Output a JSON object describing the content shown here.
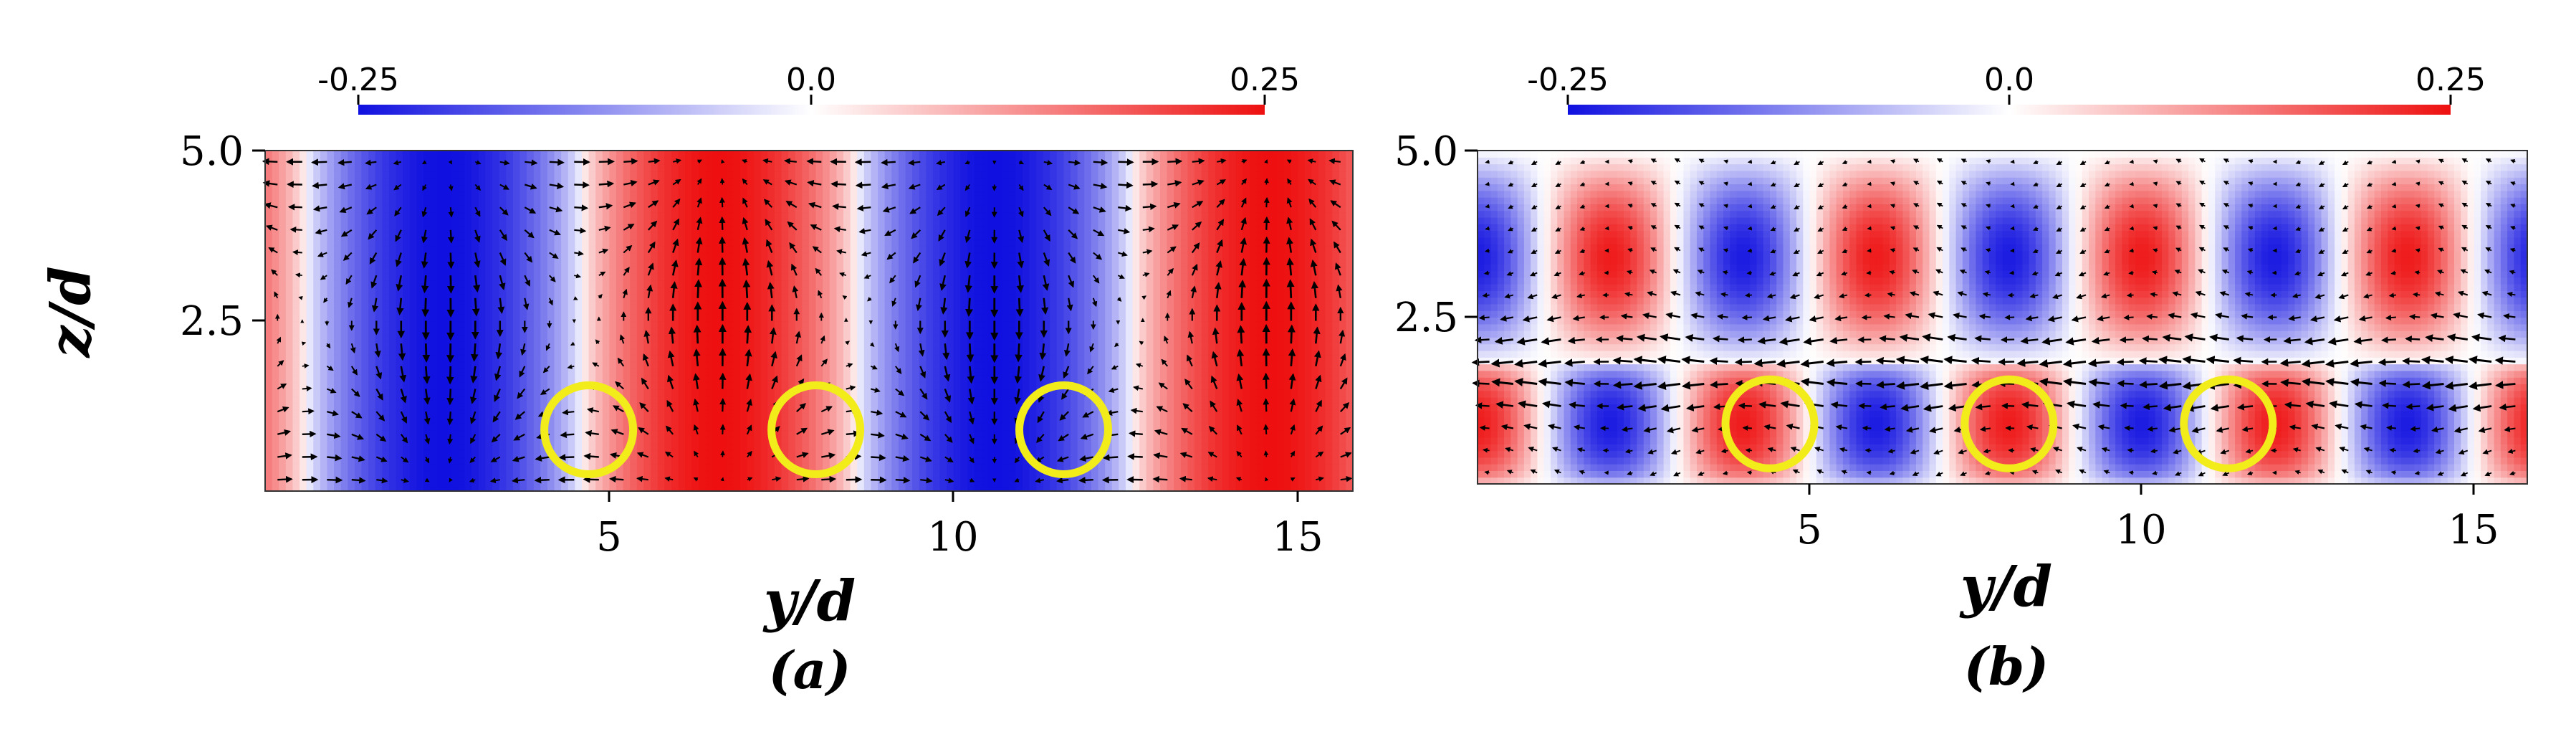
{
  "chart_data": [
    {
      "type": "heatmap",
      "panel_label": "(a)",
      "xlabel": "y/d",
      "ylabel": "z/d",
      "xlim": [
        0,
        15.8
      ],
      "ylim": [
        0,
        5.0
      ],
      "xticks": [
        5,
        10,
        15
      ],
      "xtick_labels": [
        "5",
        "10",
        "15"
      ],
      "yticks": [
        2.5,
        5.0
      ],
      "ytick_labels": [
        "2.5",
        "5.0"
      ],
      "colorbar": {
        "min": -0.25,
        "max": 0.25,
        "labels": [
          "-0.25",
          "0.0",
          "0.25"
        ],
        "colors": [
          "#1010e0",
          "#ffffff",
          "#ee1010"
        ],
        "placement": "top"
      },
      "field": {
        "pattern": "columns",
        "wavelength": 8.0,
        "phase": 0.6,
        "amplitude": 0.25
      },
      "vectors": "vortex-cells",
      "circles": [
        {
          "y": 4.7,
          "z": 0.9
        },
        {
          "y": 8.0,
          "z": 0.9
        },
        {
          "y": 11.6,
          "z": 0.9
        }
      ],
      "circle_color": "#f2ec1a"
    },
    {
      "type": "heatmap",
      "panel_label": "(b)",
      "xlabel": "y/d",
      "ylabel": "",
      "xlim": [
        0,
        15.8
      ],
      "ylim": [
        0,
        5.0
      ],
      "xticks": [
        5,
        10,
        15
      ],
      "xtick_labels": [
        "5",
        "10",
        "15"
      ],
      "yticks": [
        2.5,
        5.0
      ],
      "ytick_labels": [
        "2.5",
        "5.0"
      ],
      "colorbar": {
        "min": -0.25,
        "max": 0.25,
        "labels": [
          "-0.25",
          "0.0",
          "0.25"
        ],
        "colors": [
          "#1010e0",
          "#ffffff",
          "#ee1010"
        ],
        "placement": "top"
      },
      "field": {
        "pattern": "layered-cells",
        "wavelength": 4.0,
        "phase": 0.0,
        "interface_z": 1.8,
        "amplitude": 0.25
      },
      "vectors": "horizontal-jets",
      "circles": [
        {
          "y": 4.4,
          "z": 0.9
        },
        {
          "y": 8.0,
          "z": 0.9
        },
        {
          "y": 11.3,
          "z": 0.9
        }
      ],
      "circle_color": "#f2ec1a"
    }
  ]
}
